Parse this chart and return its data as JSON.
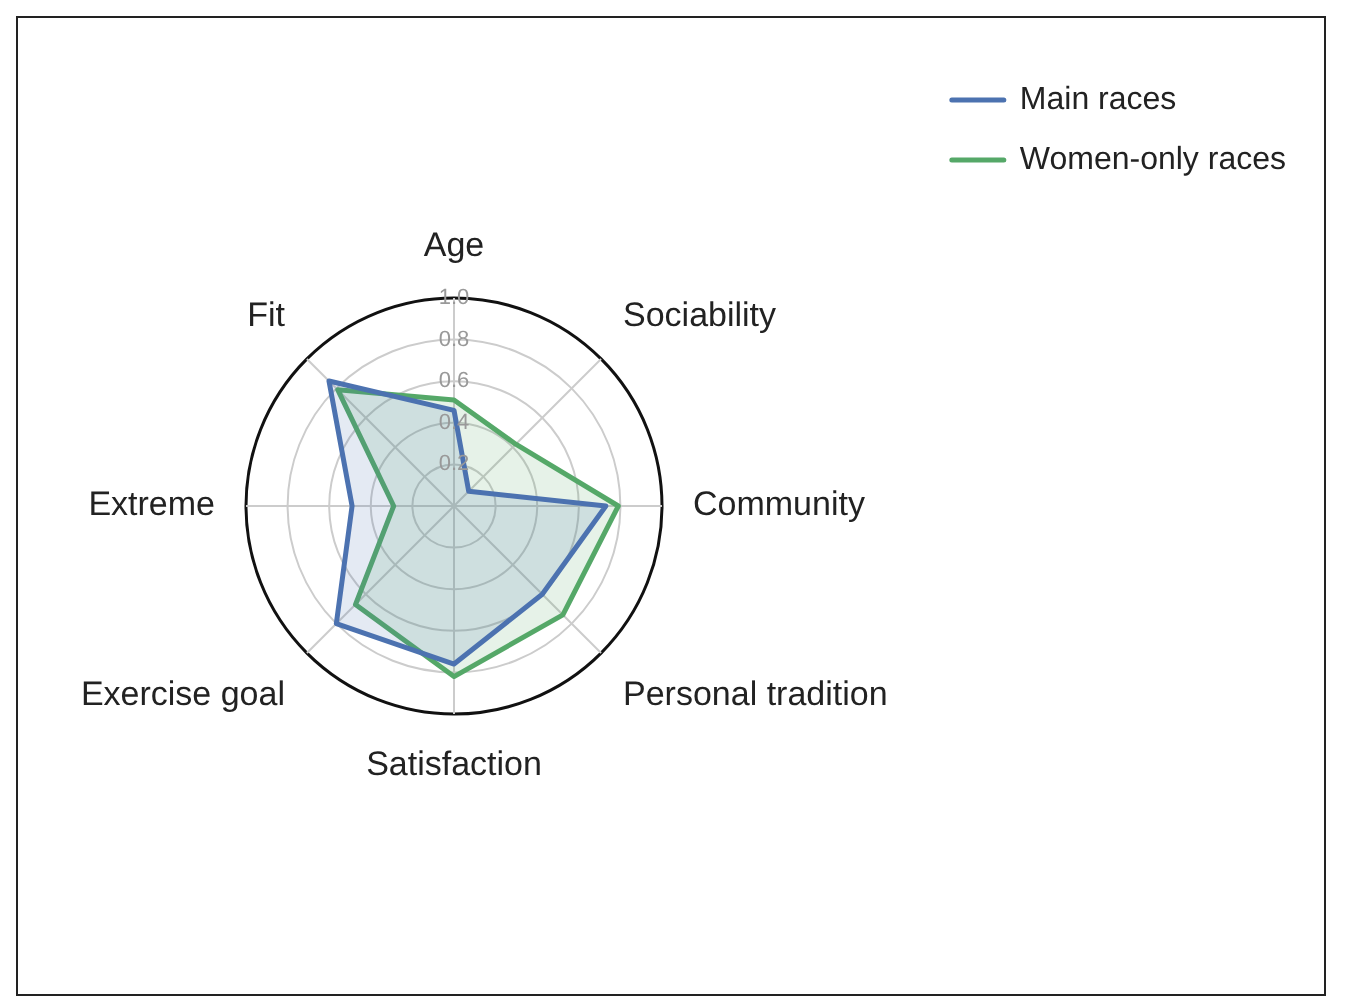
{
  "chart_data": {
    "type": "radar",
    "categories": [
      "Age",
      "Sociability",
      "Community",
      "Personal tradition",
      "Satisfaction",
      "Exercise goal",
      "Extreme",
      "Fit"
    ],
    "series": [
      {
        "name": "Main races",
        "color": "#4c72b0",
        "values": [
          0.46,
          0.1,
          0.73,
          0.6,
          0.76,
          0.8,
          0.49,
          0.85
        ]
      },
      {
        "name": "Women-only races",
        "color": "#55a868",
        "values": [
          0.51,
          0.42,
          0.79,
          0.74,
          0.82,
          0.67,
          0.29,
          0.79
        ]
      }
    ],
    "ylim": [
      0,
      1.0
    ],
    "yticks": [
      0.2,
      0.4,
      0.6,
      0.8,
      {
        "value": 1.0,
        "label": "1.0"
      }
    ],
    "grid": true,
    "legend": "top right"
  }
}
